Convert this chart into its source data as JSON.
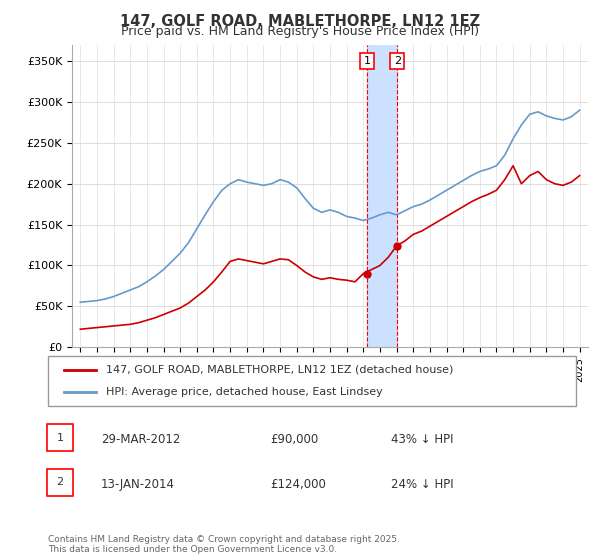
{
  "title": "147, GOLF ROAD, MABLETHORPE, LN12 1EZ",
  "subtitle": "Price paid vs. HM Land Registry's House Price Index (HPI)",
  "legend_line1": "147, GOLF ROAD, MABLETHORPE, LN12 1EZ (detached house)",
  "legend_line2": "HPI: Average price, detached house, East Lindsey",
  "transaction1_label": "1",
  "transaction1_date": "29-MAR-2012",
  "transaction1_price": "£90,000",
  "transaction1_hpi": "43% ↓ HPI",
  "transaction2_label": "2",
  "transaction2_date": "13-JAN-2014",
  "transaction2_price": "£124,000",
  "transaction2_hpi": "24% ↓ HPI",
  "footer": "Contains HM Land Registry data © Crown copyright and database right 2025.\nThis data is licensed under the Open Government Licence v3.0.",
  "red_color": "#cc0000",
  "blue_color": "#6699cc",
  "highlight_color": "#cce0ff",
  "marker_color": "#cc0000",
  "ylim": [
    0,
    370000
  ],
  "yticks": [
    0,
    50000,
    100000,
    150000,
    200000,
    250000,
    300000,
    350000
  ],
  "background": "#ffffff",
  "grid_color": "#dddddd"
}
